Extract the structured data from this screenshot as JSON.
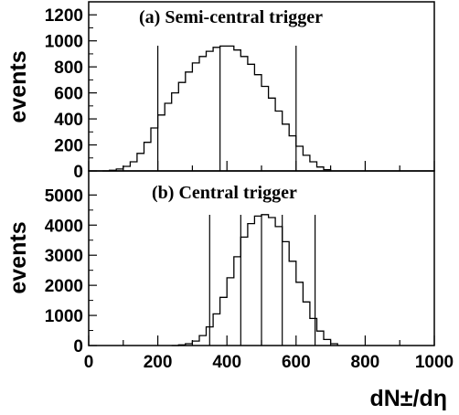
{
  "chart_data": [
    {
      "type": "histogram",
      "title": "(a)  Semi-central trigger",
      "xlabel": "",
      "ylabel": "events",
      "xlim": [
        0,
        1000
      ],
      "ylim": [
        0,
        1300
      ],
      "yticks": [
        0,
        200,
        400,
        600,
        800,
        1000,
        1200
      ],
      "cut_lines": [
        200,
        380,
        600
      ],
      "distribution": {
        "peak_x": 390,
        "peak_events": 960,
        "approx_sigma": 115,
        "range": [
          70,
          660
        ]
      },
      "series": [
        {
          "x": [
            40,
            60,
            80,
            100,
            120,
            140,
            160,
            180,
            200,
            220,
            240,
            260,
            280,
            300,
            320,
            340,
            360,
            380,
            400,
            420,
            440,
            460,
            480,
            500,
            520,
            540,
            560,
            580,
            600,
            620,
            640,
            660,
            680,
            700
          ],
          "values": [
            0,
            5,
            15,
            35,
            70,
            135,
            220,
            330,
            430,
            520,
            600,
            680,
            760,
            830,
            880,
            920,
            950,
            960,
            960,
            930,
            880,
            820,
            740,
            650,
            560,
            460,
            360,
            270,
            190,
            120,
            70,
            30,
            10,
            0
          ]
        }
      ]
    },
    {
      "type": "histogram",
      "title": "(b)  Central trigger",
      "xlabel": "dN±/dη",
      "ylabel": "events",
      "xlim": [
        0,
        1000
      ],
      "ylim": [
        0,
        5800
      ],
      "yticks": [
        0,
        1000,
        2000,
        3000,
        4000,
        5000
      ],
      "xticks": [
        0,
        200,
        400,
        600,
        800,
        1000
      ],
      "cut_lines": [
        350,
        440,
        500,
        560,
        655
      ],
      "distribution": {
        "peak_x": 495,
        "peak_events": 4350,
        "approx_sigma": 70,
        "range": [
          250,
          700
        ]
      },
      "series": [
        {
          "x": [
            240,
            260,
            280,
            300,
            320,
            340,
            360,
            380,
            400,
            420,
            440,
            460,
            480,
            500,
            520,
            540,
            560,
            580,
            600,
            620,
            640,
            660,
            680,
            700,
            720
          ],
          "values": [
            0,
            20,
            60,
            150,
            330,
            620,
            1050,
            1600,
            2250,
            2950,
            3600,
            4050,
            4300,
            4350,
            4250,
            3950,
            3450,
            2800,
            2100,
            1450,
            900,
            480,
            200,
            60,
            0
          ]
        }
      ]
    }
  ]
}
